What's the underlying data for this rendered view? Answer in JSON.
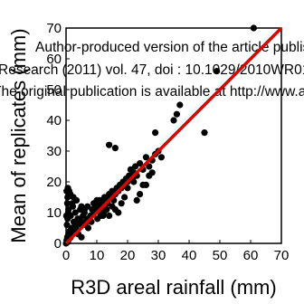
{
  "chart_data": {
    "type": "scatter",
    "title": "",
    "xlabel": "R3D areal rainfall (mm)",
    "ylabel": "Mean of replicates (mm)",
    "xlim": [
      0,
      70
    ],
    "ylim": [
      0,
      70
    ],
    "xticks": [
      "0",
      "10",
      "20",
      "30",
      "40",
      "50",
      "60",
      "70"
    ],
    "yticks": [
      "0",
      "10",
      "20",
      "30",
      "40",
      "50",
      "60",
      "70"
    ],
    "grid": false,
    "legend": "none",
    "marker_color": "#000000",
    "line": {
      "name": "",
      "color": "#e00000",
      "x": [
        0,
        70
      ],
      "y": [
        0,
        70
      ]
    },
    "series": [
      {
        "x": [
          0,
          0.2,
          0.4,
          0.6,
          0.8,
          1,
          1.2,
          1.5,
          0.3,
          0.5,
          0.1,
          0.7,
          1.8,
          2,
          2.5,
          3,
          3.5,
          4,
          4.5,
          5,
          5.5,
          6,
          6.5,
          7,
          7.5,
          8,
          8.5,
          9,
          9.5,
          10,
          10.5,
          11,
          11.5,
          12,
          12.5,
          13,
          13.5,
          14,
          14.5,
          15,
          15.5,
          16,
          16.5,
          17,
          17.5,
          18,
          18.5,
          19,
          19.5,
          20,
          20.5,
          21,
          21.5,
          22,
          22.5,
          23,
          24,
          25,
          26,
          27,
          28,
          29,
          30,
          31,
          0.4,
          0.8,
          1.5,
          2.2,
          3,
          3.2,
          3.8,
          4.6,
          5.2,
          6.2,
          7.2,
          8.2,
          9.2,
          10.2,
          11.2,
          12.2,
          13.2,
          2,
          3,
          4,
          5,
          6,
          5,
          7,
          8,
          9,
          10,
          14,
          15,
          16,
          17,
          18,
          19,
          20,
          22,
          23,
          24,
          25,
          26,
          28,
          0.5,
          1,
          0.2,
          0.6,
          1,
          1.4,
          2.4,
          3.4,
          10,
          12,
          14,
          16,
          27,
          29,
          35,
          36,
          37,
          45,
          49,
          61
        ],
        "y": [
          0,
          1,
          2,
          0.5,
          3,
          1.5,
          4,
          2,
          6,
          8,
          9,
          10,
          5,
          3,
          7,
          6,
          4,
          8,
          7,
          6,
          9,
          10,
          7,
          12,
          8,
          9,
          11,
          10,
          13,
          12,
          11,
          14,
          12,
          13,
          15,
          14,
          13,
          16,
          15,
          17,
          14,
          16,
          18,
          17,
          19,
          18,
          20,
          19,
          21,
          20,
          22,
          24,
          21,
          23,
          25,
          22,
          26,
          24,
          28,
          25,
          27,
          29,
          30,
          28,
          13,
          11,
          9,
          12,
          10,
          5,
          8,
          11,
          7,
          6,
          5,
          7,
          10,
          8,
          9,
          10,
          11,
          13,
          4,
          3,
          2,
          11,
          12,
          8,
          9,
          13,
          14,
          9,
          12,
          11,
          10,
          13,
          15,
          18,
          20,
          14,
          16,
          19,
          19,
          23,
          15,
          16,
          17,
          18,
          17,
          16,
          15,
          14,
          13,
          9,
          32,
          31,
          22,
          36,
          40,
          42,
          45,
          36,
          56,
          70
        ]
      }
    ]
  }
}
